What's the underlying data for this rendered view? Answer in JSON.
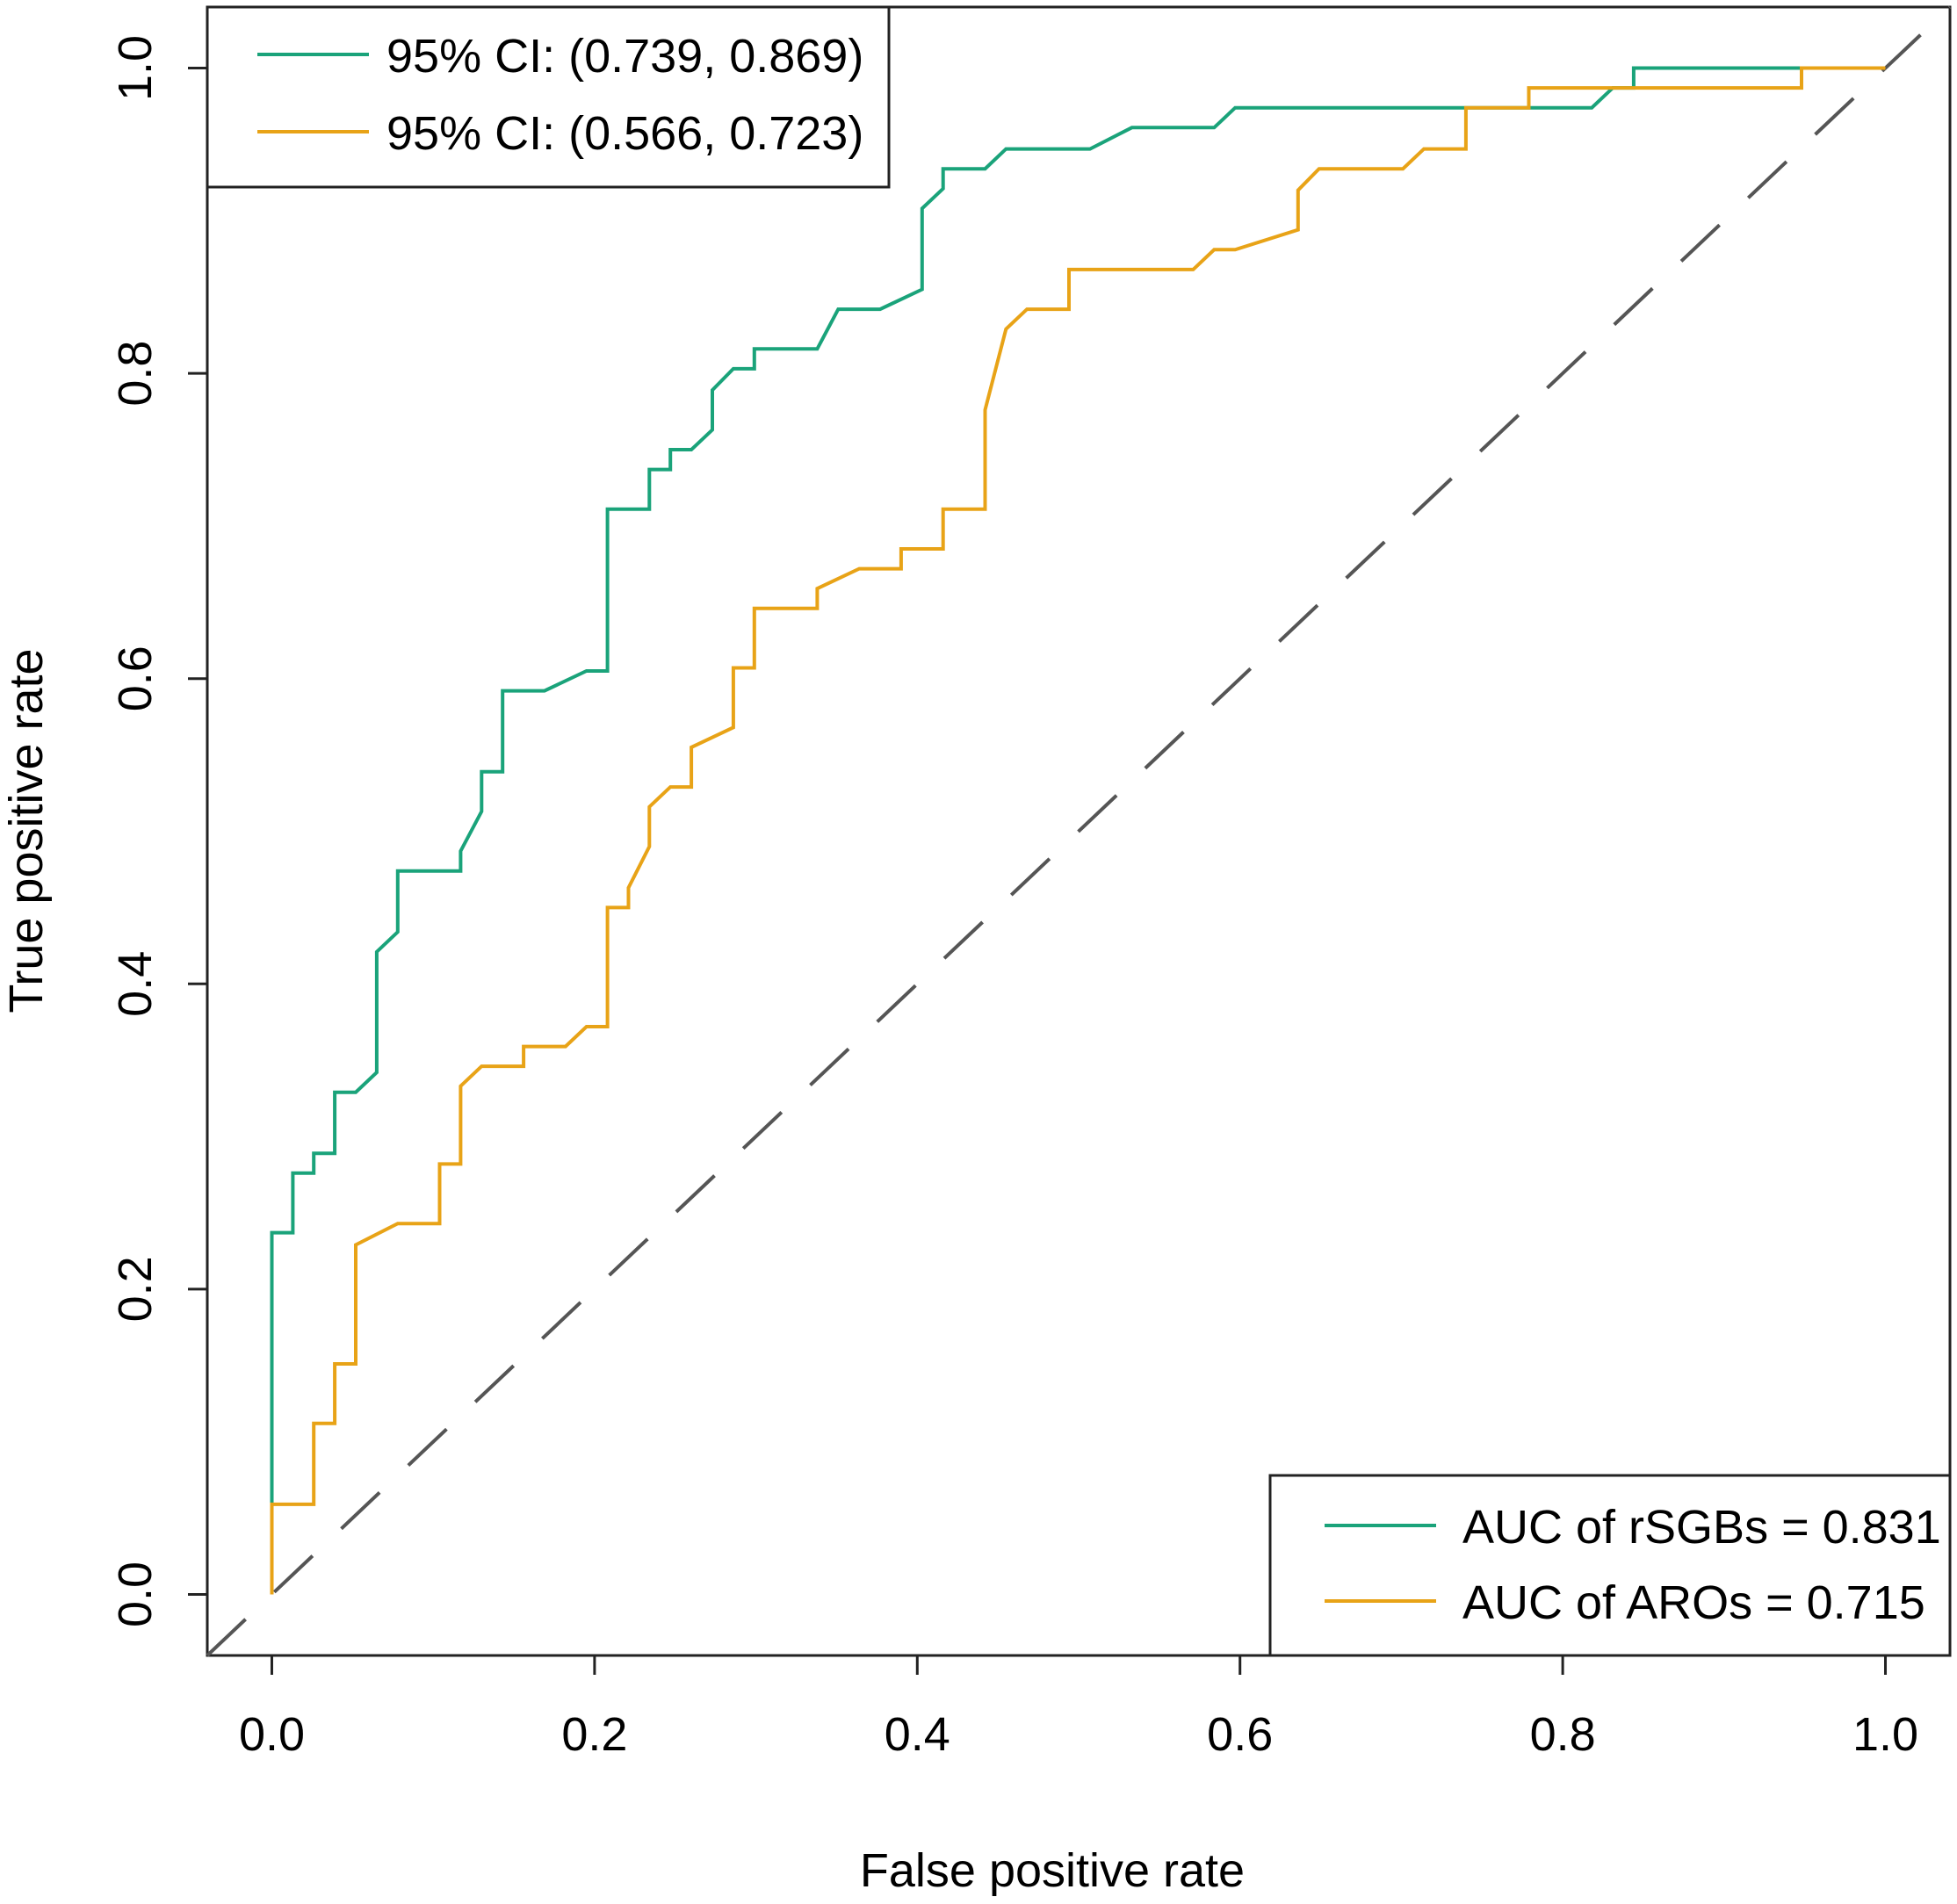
{
  "chart_data": {
    "type": "line",
    "title": "",
    "xlabel": "False positive rate",
    "ylabel": "True positive rate",
    "xlim": [
      -0.04,
      1.04
    ],
    "ylim": [
      -0.04,
      1.04
    ],
    "xticks": [
      0.0,
      0.2,
      0.4,
      0.6,
      0.8,
      1.0
    ],
    "yticks": [
      0.0,
      0.2,
      0.4,
      0.6,
      0.8,
      1.0
    ],
    "tick_labels": [
      "0.0",
      "0.2",
      "0.4",
      "0.6",
      "0.8",
      "1.0"
    ],
    "grid": false,
    "series": [
      {
        "name": "rSGBs",
        "color": "#1aa37a",
        "x": [
          0.0,
          0.0,
          0.013,
          0.013,
          0.026,
          0.026,
          0.039,
          0.039,
          0.052,
          0.065,
          0.065,
          0.078,
          0.078,
          0.117,
          0.117,
          0.13,
          0.13,
          0.143,
          0.143,
          0.169,
          0.195,
          0.208,
          0.208,
          0.234,
          0.234,
          0.247,
          0.247,
          0.26,
          0.273,
          0.273,
          0.286,
          0.299,
          0.299,
          0.338,
          0.351,
          0.377,
          0.403,
          0.403,
          0.416,
          0.416,
          0.442,
          0.455,
          0.507,
          0.533,
          0.584,
          0.597,
          0.818,
          0.831,
          0.844,
          0.844,
          1.0
        ],
        "y": [
          0.0,
          0.237,
          0.237,
          0.276,
          0.276,
          0.289,
          0.289,
          0.329,
          0.329,
          0.342,
          0.421,
          0.434,
          0.474,
          0.474,
          0.487,
          0.513,
          0.539,
          0.539,
          0.592,
          0.592,
          0.605,
          0.605,
          0.711,
          0.711,
          0.737,
          0.737,
          0.75,
          0.75,
          0.763,
          0.789,
          0.803,
          0.803,
          0.816,
          0.816,
          0.842,
          0.842,
          0.855,
          0.908,
          0.921,
          0.934,
          0.934,
          0.947,
          0.947,
          0.961,
          0.961,
          0.974,
          0.974,
          0.987,
          0.987,
          1.0,
          1.0
        ]
      },
      {
        "name": "AROs",
        "color": "#e8a317",
        "x": [
          0.0,
          0.0,
          0.026,
          0.026,
          0.039,
          0.039,
          0.052,
          0.052,
          0.078,
          0.104,
          0.104,
          0.117,
          0.117,
          0.13,
          0.156,
          0.156,
          0.182,
          0.195,
          0.208,
          0.208,
          0.221,
          0.221,
          0.234,
          0.234,
          0.247,
          0.26,
          0.26,
          0.286,
          0.286,
          0.299,
          0.299,
          0.338,
          0.338,
          0.364,
          0.39,
          0.39,
          0.416,
          0.416,
          0.442,
          0.442,
          0.455,
          0.468,
          0.494,
          0.494,
          0.571,
          0.584,
          0.597,
          0.636,
          0.636,
          0.649,
          0.701,
          0.714,
          0.74,
          0.74,
          0.779,
          0.779,
          0.844,
          0.948,
          0.948,
          1.0
        ],
        "y": [
          0.0,
          0.059,
          0.059,
          0.112,
          0.112,
          0.151,
          0.151,
          0.229,
          0.243,
          0.243,
          0.282,
          0.282,
          0.333,
          0.346,
          0.346,
          0.359,
          0.359,
          0.372,
          0.372,
          0.45,
          0.45,
          0.463,
          0.49,
          0.516,
          0.529,
          0.529,
          0.555,
          0.568,
          0.607,
          0.607,
          0.646,
          0.646,
          0.659,
          0.672,
          0.672,
          0.685,
          0.685,
          0.711,
          0.711,
          0.776,
          0.829,
          0.842,
          0.842,
          0.868,
          0.868,
          0.881,
          0.881,
          0.894,
          0.92,
          0.934,
          0.934,
          0.947,
          0.947,
          0.974,
          0.974,
          0.987,
          0.987,
          0.987,
          1.0,
          1.0
        ]
      }
    ],
    "reference_line": {
      "x": [
        0.0,
        1.0
      ],
      "y": [
        0.0,
        1.0
      ],
      "style": "dashed",
      "color": "#555555"
    },
    "legends": {
      "ci": {
        "position": "top-left",
        "entries": [
          {
            "label": "95% CI: (0.739, 0.869)",
            "color": "#1aa37a"
          },
          {
            "label": "95% CI: (0.566, 0.723)",
            "color": "#e8a317"
          }
        ]
      },
      "auc": {
        "position": "bottom-right",
        "entries": [
          {
            "label": "AUC of rSGBs = 0.831",
            "color": "#1aa37a"
          },
          {
            "label": "AUC of AROs = 0.715",
            "color": "#e8a317"
          }
        ]
      }
    }
  }
}
